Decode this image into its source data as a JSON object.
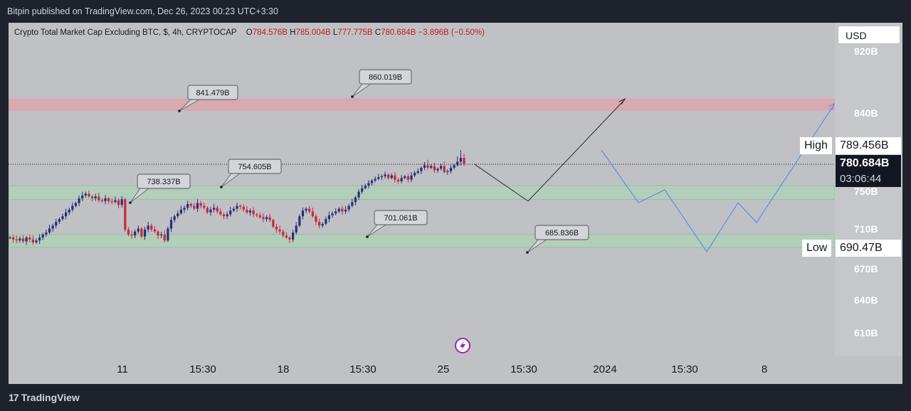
{
  "header": {
    "published_text": "Bitpin published on TradingView.com, Dec 26, 2023 00:23 UTC+3:30"
  },
  "legend": {
    "symbol": "Crypto Total Market Cap Excluding BTC, $, 4h, CRYPTOCAP",
    "o_label": "O",
    "o_value": "784.576B",
    "h_label": "H",
    "h_value": "785.004B",
    "l_label": "L",
    "l_value": "777.775B",
    "c_label": "C",
    "c_value": "780.684B",
    "change": "−3.896B (−0.50%)"
  },
  "currency_button": "USD",
  "price_ticks": [
    "920B",
    "840B",
    "750B",
    "710B",
    "670B",
    "640B",
    "610B"
  ],
  "price_tags": {
    "high_label": "High",
    "high_value": "789.456B",
    "last_value": "780.684B",
    "countdown": "03:06:44",
    "low_label": "Low",
    "low_value": "690.47B"
  },
  "time_labels": [
    "11",
    "15:30",
    "18",
    "15:30",
    "25",
    "15:30",
    "2024",
    "15:30",
    "8"
  ],
  "footer": {
    "brand": "TradingView",
    "logo_mark": "17"
  },
  "colors": {
    "up": "#2a2e7a",
    "down": "#c8283a",
    "resistance_zone": "#e89aa0",
    "support_zone": "#a8d8b0",
    "projection_dark": "#2b2b2b",
    "projection_blue": "#5b8def"
  },
  "chart_data": {
    "type": "candlestick",
    "title": "Crypto Total Market Cap Excluding BTC, $, 4h, CRYPTOCAP",
    "y_unit": "B USD",
    "timeframe": "4h",
    "last_price": 780.684,
    "session_high": 789.456,
    "session_low": 690.47,
    "candles_close": [
      700,
      698,
      697,
      699,
      696,
      700,
      698,
      695,
      697,
      700,
      703,
      705,
      709,
      712,
      716,
      719,
      722,
      726,
      729,
      733,
      736,
      741,
      744,
      746,
      743,
      741,
      743,
      739,
      738,
      741,
      738,
      737,
      739,
      734,
      740,
      708,
      703,
      702,
      706,
      709,
      701,
      708,
      712,
      708,
      706,
      702,
      703,
      697,
      709,
      718,
      722,
      725,
      729,
      731,
      735,
      733,
      730,
      736,
      733,
      731,
      726,
      729,
      731,
      727,
      724,
      722,
      724,
      728,
      730,
      733,
      732,
      729,
      726,
      728,
      724,
      723,
      721,
      719,
      721,
      718,
      711,
      708,
      706,
      702,
      700,
      698,
      705,
      712,
      722,
      728,
      730,
      727,
      722,
      716,
      712,
      714,
      719,
      723,
      725,
      727,
      730,
      727,
      729,
      733,
      737,
      742,
      748,
      752,
      755,
      758,
      761,
      763,
      765,
      766,
      768,
      764,
      767,
      762,
      760,
      764,
      766,
      762,
      767,
      770,
      772,
      776,
      779,
      776,
      778,
      773,
      775,
      778,
      771,
      772,
      776,
      779,
      782,
      784,
      780.684
    ],
    "annotations": [
      "841.479B",
      "860.019B",
      "738.337B",
      "754.605B",
      "701.061B",
      "685.836B"
    ],
    "zones": [
      {
        "type": "resistance",
        "from": 841,
        "to": 857
      },
      {
        "type": "support",
        "from": 740,
        "to": 755
      },
      {
        "type": "support",
        "from": 690,
        "to": 703
      }
    ],
    "projection_dark": [
      {
        "t": "25",
        "v": 780
      },
      {
        "t": "15:30",
        "v": 738
      },
      {
        "t": "2024",
        "v": 855
      }
    ],
    "projection_blue": [
      {
        "t": "15:30",
        "v": 770
      },
      {
        "t": "2024",
        "v": 744
      },
      {
        "t": "15:30",
        "v": 750
      },
      {
        "t": "8",
        "v": 690
      },
      {
        "t": "8",
        "v": 742
      },
      {
        "t": "8",
        "v": 727
      },
      {
        "t": "8",
        "v": 850
      }
    ]
  }
}
